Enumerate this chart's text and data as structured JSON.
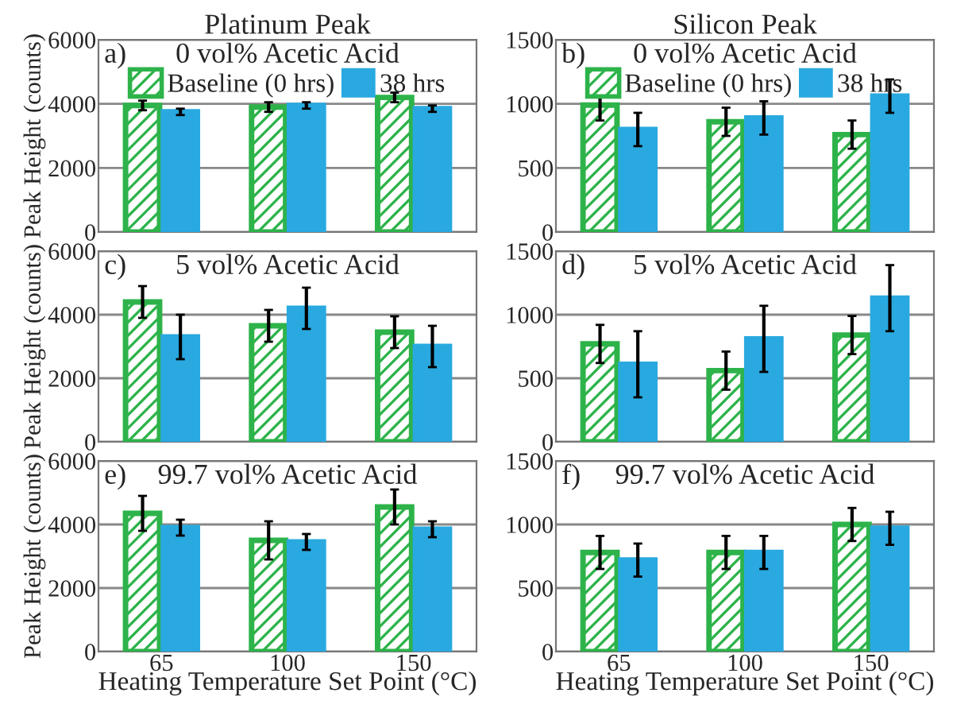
{
  "chart_data": [
    {
      "type": "bar",
      "title": "Platinum Peak",
      "subtitle": "0 vol% Acetic Acid",
      "annotations": [
        "a)"
      ],
      "ylabel": "Peak Height (counts)",
      "categories": [
        "65",
        "100",
        "150"
      ],
      "ylim": [
        0,
        6000
      ],
      "yticks": [
        0,
        2000,
        4000,
        6000
      ],
      "grid": "y",
      "legend": "top",
      "tick_labels": "y",
      "series": [
        {
          "name": "Baseline (0 hrs)",
          "color": "#2db34a",
          "values": [
            3950,
            3900,
            4200
          ],
          "errors": [
            150,
            150,
            150
          ]
        },
        {
          "name": "38 hrs",
          "color": "#29a9e0",
          "values": [
            3750,
            3950,
            3850
          ],
          "errors": [
            100,
            100,
            100
          ]
        }
      ]
    },
    {
      "type": "bar",
      "title": "Silicon Peak",
      "subtitle": "0 vol% Acetic Acid",
      "annotations": [
        "b)"
      ],
      "categories": [
        "65",
        "100",
        "150"
      ],
      "ylim": [
        0,
        1500
      ],
      "yticks": [
        0,
        500,
        1000,
        1500
      ],
      "grid": "y",
      "legend": "top",
      "tick_labels": "y",
      "series": [
        {
          "name": "Baseline (0 hrs)",
          "color": "#2db34a",
          "values": [
            990,
            860,
            760
          ],
          "errors": [
            120,
            110,
            110
          ]
        },
        {
          "name": "38 hrs",
          "color": "#29a9e0",
          "values": [
            800,
            890,
            1060
          ],
          "errors": [
            130,
            130,
            130
          ]
        }
      ]
    },
    {
      "type": "bar",
      "subtitle": "5 vol% Acetic Acid",
      "annotations": [
        "c)"
      ],
      "ylabel": "Peak Height (counts)",
      "categories": [
        "65",
        "100",
        "150"
      ],
      "ylim": [
        0,
        6000
      ],
      "yticks": [
        0,
        2000,
        4000,
        6000
      ],
      "grid": "y",
      "tick_labels": "y",
      "series": [
        {
          "color": "#2db34a",
          "values": [
            4400,
            3650,
            3450
          ],
          "errors": [
            500,
            500,
            500
          ]
        },
        {
          "color": "#29a9e0",
          "values": [
            3300,
            4200,
            3000
          ],
          "errors": [
            700,
            650,
            650
          ]
        }
      ]
    },
    {
      "type": "bar",
      "subtitle": "5 vol% Acetic Acid",
      "annotations": [
        "d)"
      ],
      "categories": [
        "65",
        "100",
        "150"
      ],
      "ylim": [
        0,
        1500
      ],
      "yticks": [
        0,
        500,
        1000,
        1500
      ],
      "grid": "y",
      "tick_labels": "y",
      "series": [
        {
          "color": "#2db34a",
          "values": [
            770,
            560,
            840
          ],
          "errors": [
            150,
            150,
            150
          ]
        },
        {
          "color": "#29a9e0",
          "values": [
            610,
            810,
            1130
          ],
          "errors": [
            260,
            260,
            260
          ]
        }
      ]
    },
    {
      "type": "bar",
      "subtitle": "99.7 vol% Acetic Acid",
      "annotations": [
        "e)"
      ],
      "ylabel": "Peak Height (counts)",
      "xlabel": "Heating Temperature Set Point (°C)",
      "categories": [
        "65",
        "100",
        "150"
      ],
      "ylim": [
        0,
        6000
      ],
      "yticks": [
        0,
        2000,
        4000,
        6000
      ],
      "grid": "y",
      "series": [
        {
          "color": "#2db34a",
          "values": [
            4350,
            3500,
            4550
          ],
          "errors": [
            550,
            600,
            550
          ]
        },
        {
          "color": "#29a9e0",
          "values": [
            3900,
            3450,
            3850
          ],
          "errors": [
            250,
            250,
            250
          ]
        }
      ]
    },
    {
      "type": "bar",
      "subtitle": "99.7 vol% Acetic Acid",
      "annotations": [
        "f)"
      ],
      "xlabel": "Heating Temperature Set Point (°C)",
      "categories": [
        "65",
        "100",
        "150"
      ],
      "ylim": [
        0,
        1500
      ],
      "yticks": [
        0,
        500,
        1000,
        1500
      ],
      "grid": "y",
      "series": [
        {
          "color": "#2db34a",
          "values": [
            780,
            780,
            1000
          ],
          "errors": [
            130,
            130,
            130
          ]
        },
        {
          "color": "#29a9e0",
          "values": [
            720,
            780,
            970
          ],
          "errors": [
            130,
            130,
            130
          ]
        }
      ]
    }
  ]
}
